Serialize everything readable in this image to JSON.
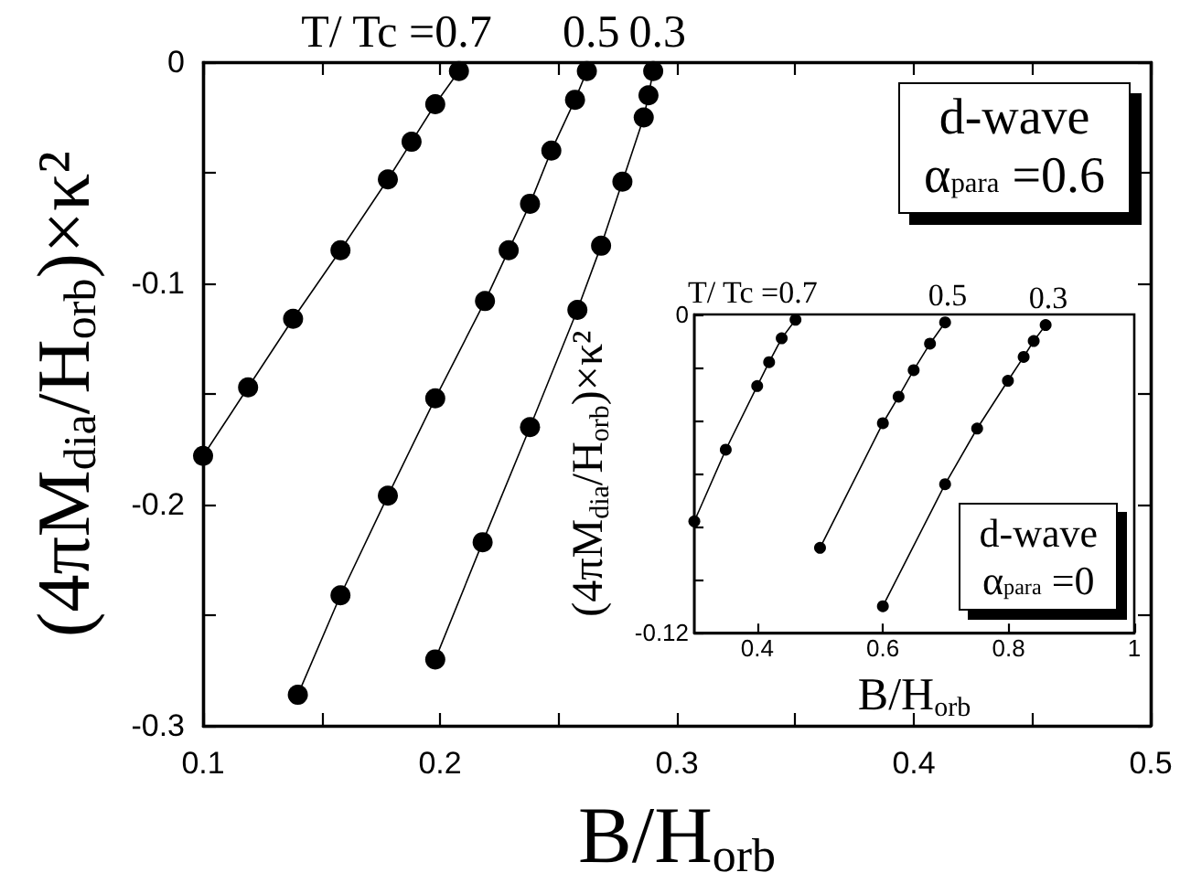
{
  "chart_data": [
    {
      "type": "line",
      "xlabel": "B/H$_{orb}$",
      "ylabel": "(4πM$_{dia}$/H$_{orb}$)×κ²",
      "annotations": [
        "d-wave",
        "α$_{para}$ =0.6"
      ],
      "xlim": [
        0.1,
        0.5
      ],
      "ylim": [
        -0.3,
        0
      ],
      "xticks": [
        0.1,
        {
          "value": 0.15,
          "label": null
        },
        0.2,
        {
          "value": 0.25,
          "label": null
        },
        0.3,
        {
          "value": 0.35,
          "label": null
        },
        0.4,
        {
          "value": 0.45,
          "label": null
        },
        0.5
      ],
      "yticks": [
        -0.3,
        {
          "value": -0.25,
          "label": null
        },
        -0.2,
        {
          "value": -0.15,
          "label": null
        },
        -0.1,
        {
          "value": -0.05,
          "label": null
        },
        0
      ],
      "marker": "circle",
      "line_style": "solid",
      "series": [
        {
          "name": "T/ Tc =0.7",
          "color": "#000000",
          "x": [
            0.1,
            0.119,
            0.138,
            0.158,
            0.178,
            0.188,
            0.198,
            0.208
          ],
          "values": [
            -0.178,
            -0.147,
            -0.116,
            -0.085,
            -0.053,
            -0.036,
            -0.019,
            -0.004
          ]
        },
        {
          "name": "0.5",
          "color": "#000000",
          "x": [
            0.14,
            0.158,
            0.178,
            0.198,
            0.219,
            0.229,
            0.238,
            0.247,
            0.257,
            0.262
          ],
          "values": [
            -0.286,
            -0.241,
            -0.196,
            -0.152,
            -0.108,
            -0.085,
            -0.064,
            -0.04,
            -0.017,
            -0.004
          ]
        },
        {
          "name": "0.3",
          "color": "#000000",
          "x": [
            0.198,
            0.218,
            0.238,
            0.258,
            0.268,
            0.277,
            0.286,
            0.288,
            0.29
          ],
          "values": [
            -0.27,
            -0.217,
            -0.165,
            -0.112,
            -0.083,
            -0.054,
            -0.025,
            -0.015,
            -0.004
          ]
        }
      ]
    },
    {
      "type": "line",
      "xlabel": "B/H$_{orb}$",
      "ylabel": "(4πM$_{dia}$/H$_{orb}$)×κ²",
      "annotations": [
        "d-wave",
        "α$_{para}$ =0"
      ],
      "xlim": [
        0.3,
        1
      ],
      "ylim": [
        -0.12,
        0
      ],
      "xticks": [
        0.4,
        0.6,
        0.8,
        1
      ],
      "yticks": [
        -0.12,
        {
          "value": -0.1,
          "label": null
        },
        {
          "value": -0.08,
          "label": null
        },
        {
          "value": -0.06,
          "label": null
        },
        {
          "value": -0.04,
          "label": null
        },
        {
          "value": -0.02,
          "label": null
        },
        0
      ],
      "marker": "circle",
      "line_style": "solid",
      "series": [
        {
          "name": "T/ Tc =0.7",
          "color": "#000000",
          "x": [
            0.3,
            0.35,
            0.4,
            0.419,
            0.439,
            0.461
          ],
          "values": [
            -0.078,
            -0.051,
            -0.027,
            -0.018,
            -0.009,
            -0.002
          ]
        },
        {
          "name": "0.5",
          "color": "#000000",
          "x": [
            0.5,
            0.6,
            0.625,
            0.649,
            0.675,
            0.699
          ],
          "values": [
            -0.088,
            -0.041,
            -0.031,
            -0.021,
            -0.011,
            -0.003
          ]
        },
        {
          "name": "0.3",
          "color": "#000000",
          "x": [
            0.6,
            0.699,
            0.75,
            0.799,
            0.824,
            0.84,
            0.859
          ],
          "values": [
            -0.11,
            -0.064,
            -0.043,
            -0.025,
            -0.016,
            -0.01,
            -0.004
          ]
        }
      ]
    }
  ]
}
